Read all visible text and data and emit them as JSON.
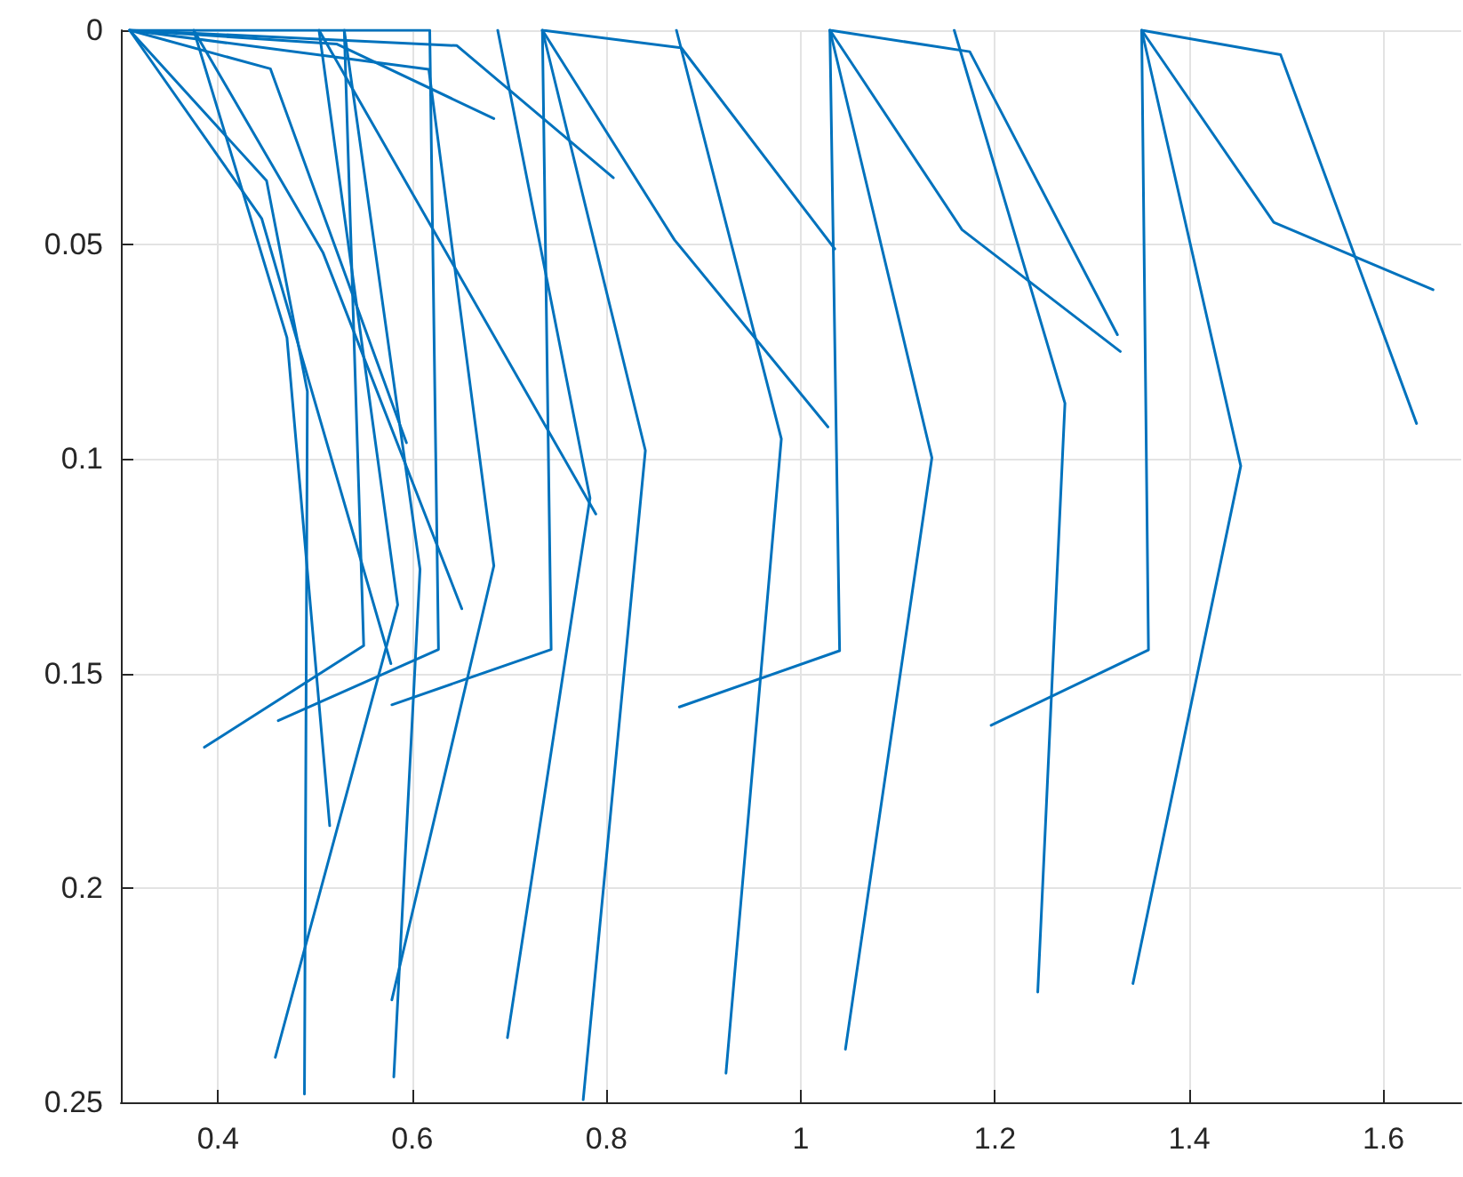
{
  "chart_data": {
    "type": "line",
    "marker": "none",
    "line_style": "solid",
    "grid": true,
    "xlim": [
      0.3,
      1.68
    ],
    "xticks": [
      0.4,
      0.6,
      0.8,
      1,
      1.2,
      1.4,
      1.6
    ],
    "ylim": [
      0.25,
      0
    ],
    "yticks": [
      0,
      0.05,
      0.1,
      0.15,
      0.2,
      0.25
    ],
    "series": [
      {
        "color": "#0072bd",
        "x": [
          0.309,
          0.646,
          0.807
        ],
        "values": [
          0,
          0.0036,
          0.0344
        ]
      },
      {
        "color": "#0072bd",
        "x": [
          0.309,
          0.522,
          0.684
        ],
        "values": [
          0,
          0.0032,
          0.0206
        ]
      },
      {
        "color": "#0072bd",
        "x": [
          0.309,
          0.454,
          0.594
        ],
        "values": [
          0,
          0.009,
          0.0962
        ]
      },
      {
        "color": "#0072bd",
        "x": [
          0.309,
          0.45,
          0.492,
          0.489
        ],
        "values": [
          0,
          0.0351,
          0.0842,
          0.2481
        ]
      },
      {
        "color": "#0072bd",
        "x": [
          0.309,
          0.445,
          0.578
        ],
        "values": [
          0,
          0.0439,
          0.1477
        ]
      },
      {
        "color": "#0072bd",
        "x": [
          0.504,
          0.789
        ],
        "values": [
          0,
          0.1128
        ]
      },
      {
        "color": "#0072bd",
        "x": [
          0.375,
          0.508,
          0.651
        ],
        "values": [
          0,
          0.0518,
          0.1349
        ]
      },
      {
        "color": "#0072bd",
        "x": [
          0.375,
          0.471,
          0.515
        ],
        "values": [
          0,
          0.0717,
          0.1855
        ]
      },
      {
        "color": "#0072bd",
        "x": [
          0.504,
          0.585,
          0.459
        ],
        "values": [
          0,
          0.134,
          0.2395
        ]
      },
      {
        "color": "#0072bd",
        "x": [
          0.53,
          0.608,
          0.581
        ],
        "values": [
          0,
          0.1257,
          0.2441
        ]
      },
      {
        "color": "#0072bd",
        "x": [
          0.309,
          0.617,
          0.684,
          0.579
        ],
        "values": [
          0,
          0.0091,
          0.1249,
          0.2261
        ]
      },
      {
        "color": "#0072bd",
        "x": [
          0.53,
          0.55,
          0.386
        ],
        "values": [
          0,
          0.1435,
          0.1672
        ]
      },
      {
        "color": "#0072bd",
        "x": [
          0.309,
          0.618,
          0.627,
          0.462
        ],
        "values": [
          0,
          0,
          0.1444,
          0.161
        ]
      },
      {
        "color": "#0072bd",
        "x": [
          0.734,
          0.743,
          0.579
        ],
        "values": [
          0,
          0.1444,
          0.1573
        ]
      },
      {
        "color": "#0072bd",
        "x": [
          0.688,
          0.783,
          0.698
        ],
        "values": [
          0,
          0.1091,
          0.2349
        ]
      },
      {
        "color": "#0072bd",
        "x": [
          0.734,
          0.877,
          1.035
        ],
        "values": [
          0,
          0.0041,
          0.051
        ]
      },
      {
        "color": "#0072bd",
        "x": [
          0.734,
          0.87,
          1.028
        ],
        "values": [
          0,
          0.0489,
          0.0925
        ]
      },
      {
        "color": "#0072bd",
        "x": [
          0.734,
          0.84,
          0.776
        ],
        "values": [
          0,
          0.098,
          0.2494
        ]
      },
      {
        "color": "#0072bd",
        "x": [
          0.872,
          0.98,
          0.923
        ],
        "values": [
          0,
          0.0953,
          0.2432
        ]
      },
      {
        "color": "#0072bd",
        "x": [
          1.03,
          1.174,
          1.326
        ],
        "values": [
          0,
          0.005,
          0.071
        ]
      },
      {
        "color": "#0072bd",
        "x": [
          1.03,
          1.166,
          1.329
        ],
        "values": [
          0,
          0.0465,
          0.0749
        ]
      },
      {
        "color": "#0072bd",
        "x": [
          1.03,
          1.135,
          1.046
        ],
        "values": [
          0,
          0.0997,
          0.2376
        ]
      },
      {
        "color": "#0072bd",
        "x": [
          1.03,
          1.04,
          0.875
        ],
        "values": [
          0,
          0.1447,
          0.1578
        ]
      },
      {
        "color": "#0072bd",
        "x": [
          1.158,
          1.272,
          1.244
        ],
        "values": [
          0,
          0.087,
          0.2243
        ]
      },
      {
        "color": "#0072bd",
        "x": [
          1.351,
          1.494,
          1.634
        ],
        "values": [
          0,
          0.0057,
          0.0917
        ]
      },
      {
        "color": "#0072bd",
        "x": [
          1.351,
          1.487,
          1.651
        ],
        "values": [
          0,
          0.0448,
          0.0605
        ]
      },
      {
        "color": "#0072bd",
        "x": [
          1.351,
          1.358,
          1.196
        ],
        "values": [
          0,
          0.1445,
          0.1621
        ]
      },
      {
        "color": "#0072bd",
        "x": [
          1.351,
          1.453,
          1.342
        ],
        "values": [
          0,
          0.1016,
          0.2223
        ]
      }
    ]
  }
}
